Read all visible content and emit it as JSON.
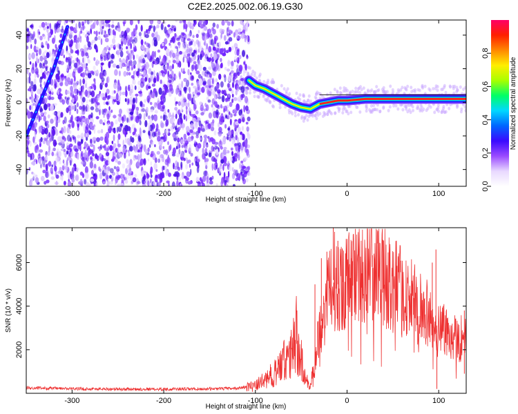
{
  "title": "C2E2.2025.002.06.19.G30",
  "chart_data": [
    {
      "type": "heatmap",
      "xlabel": "Height of straight line (km)",
      "ylabel": "Frequency (Hz)",
      "xlim": [
        -350,
        130
      ],
      "ylim": [
        -50,
        49
      ],
      "xticks": [
        -300,
        -200,
        -100,
        0,
        100
      ],
      "yticks": [
        -40,
        -20,
        0,
        20,
        40
      ],
      "colorbar": {
        "label": "Normalized spectral amplitude",
        "range": [
          0,
          1
        ],
        "ticks": [
          "0.0",
          "0.2",
          "0.4",
          "0.6",
          "0.8"
        ],
        "colormap": [
          "#ffffff",
          "#e8d8ff",
          "#9a4bff",
          "#3a0aff",
          "#0066ff",
          "#00d8ff",
          "#00ff66",
          "#a8ff00",
          "#ffee00",
          "#ff8800",
          "#ff2000",
          "#ff0066"
        ]
      },
      "features": {
        "noise_region_x": [
          -350,
          -107
        ],
        "signal_track": [
          [
            -107,
            13
          ],
          [
            -100,
            10
          ],
          [
            -90,
            8
          ],
          [
            -80,
            5
          ],
          [
            -70,
            2
          ],
          [
            -60,
            -1
          ],
          [
            -50,
            -3
          ],
          [
            -40,
            -4
          ],
          [
            -30,
            -1
          ],
          [
            -20,
            0
          ],
          [
            -10,
            1
          ],
          [
            0,
            1
          ],
          [
            20,
            2
          ],
          [
            40,
            2
          ],
          [
            60,
            2
          ],
          [
            80,
            2
          ],
          [
            100,
            2
          ],
          [
            120,
            2
          ],
          [
            130,
            2
          ]
        ],
        "diagonal_streak": [
          [
            -350,
            -20
          ],
          [
            -320,
            20
          ],
          [
            -305,
            45
          ]
        ]
      },
      "grid": false
    },
    {
      "type": "line",
      "xlabel": "Height of straight line (km)",
      "ylabel": "SNR (10 * v/v)",
      "xlim": [
        -350,
        130
      ],
      "ylim": [
        0,
        7600
      ],
      "xticks": [
        -300,
        -200,
        -100,
        0,
        100
      ],
      "yticks": [
        2000,
        4000,
        6000
      ],
      "color": "#ee3030",
      "envelope": [
        [
          -350,
          250
        ],
        [
          -300,
          210
        ],
        [
          -250,
          190
        ],
        [
          -200,
          190
        ],
        [
          -150,
          200
        ],
        [
          -120,
          230
        ],
        [
          -100,
          350
        ],
        [
          -90,
          600
        ],
        [
          -80,
          900
        ],
        [
          -70,
          1400
        ],
        [
          -60,
          1800
        ],
        [
          -55,
          2800
        ],
        [
          -50,
          1500
        ],
        [
          -45,
          600
        ],
        [
          -40,
          500
        ],
        [
          -35,
          1300
        ],
        [
          -30,
          3200
        ],
        [
          -25,
          3500
        ],
        [
          -20,
          4500
        ],
        [
          -15,
          5200
        ],
        [
          -10,
          5000
        ],
        [
          0,
          5200
        ],
        [
          10,
          5600
        ],
        [
          20,
          5700
        ],
        [
          30,
          5800
        ],
        [
          40,
          5400
        ],
        [
          50,
          5000
        ],
        [
          60,
          4600
        ],
        [
          70,
          4300
        ],
        [
          80,
          3900
        ],
        [
          90,
          3600
        ],
        [
          95,
          2500
        ],
        [
          100,
          3200
        ],
        [
          110,
          2800
        ],
        [
          120,
          2600
        ],
        [
          130,
          2500
        ]
      ],
      "spikes": [
        [
          -15,
          7600
        ],
        [
          -22,
          6500
        ],
        [
          -10,
          7000
        ],
        [
          -28,
          6200
        ],
        [
          -35,
          5000
        ],
        [
          -5,
          6600
        ],
        [
          5,
          6200
        ],
        [
          93,
          6000
        ],
        [
          97,
          6600
        ],
        [
          98,
          200
        ],
        [
          128,
          3800
        ],
        [
          128,
          900
        ]
      ],
      "grid": false
    }
  ]
}
